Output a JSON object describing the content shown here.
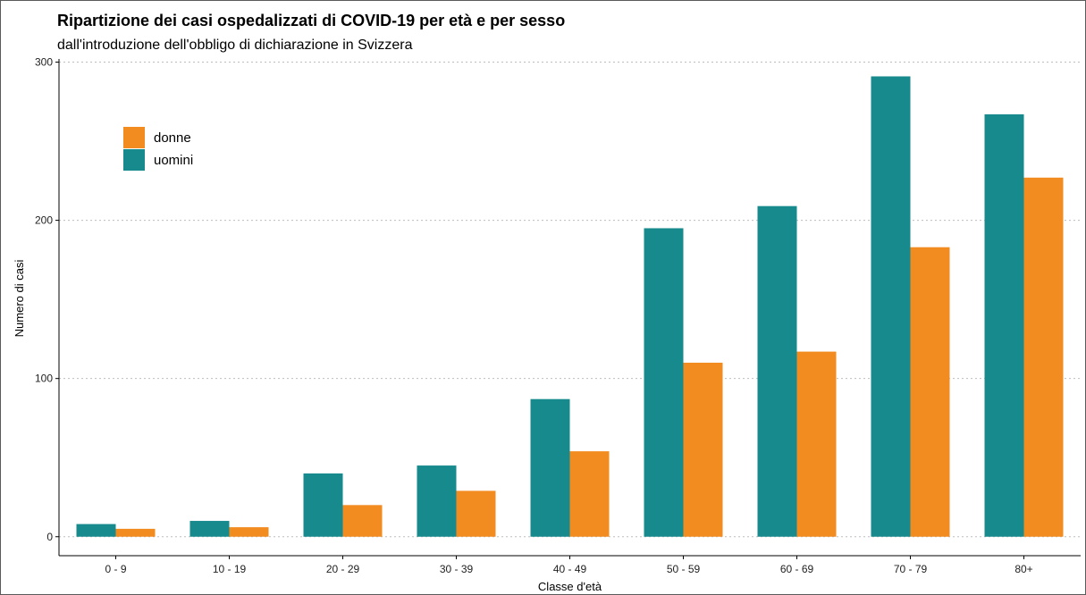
{
  "chart_data": {
    "type": "bar",
    "title": "Ripartizione dei casi ospedalizzati di COVID-19 per età e per sesso",
    "subtitle": "dall'introduzione dell'obbligo di dichiarazione in Svizzera",
    "xlabel": "Classe d'età",
    "ylabel": "Numero di casi",
    "categories": [
      "0 - 9",
      "10 - 19",
      "20 - 29",
      "30 - 39",
      "40 - 49",
      "50 - 59",
      "60 - 69",
      "70 - 79",
      "80+"
    ],
    "series": [
      {
        "name": "uomini",
        "color": "#178A8E",
        "values": [
          8,
          10,
          40,
          45,
          87,
          195,
          209,
          291,
          267
        ]
      },
      {
        "name": "donne",
        "color": "#F28C21",
        "values": [
          5,
          6,
          20,
          29,
          54,
          110,
          117,
          183,
          227
        ]
      }
    ],
    "ylim": [
      -12,
      302
    ],
    "yticks": [
      0,
      100,
      200,
      300
    ],
    "grid": "horizontal-dotted",
    "legend": {
      "placement": "top-left",
      "order": [
        "donne",
        "uomini"
      ]
    }
  }
}
